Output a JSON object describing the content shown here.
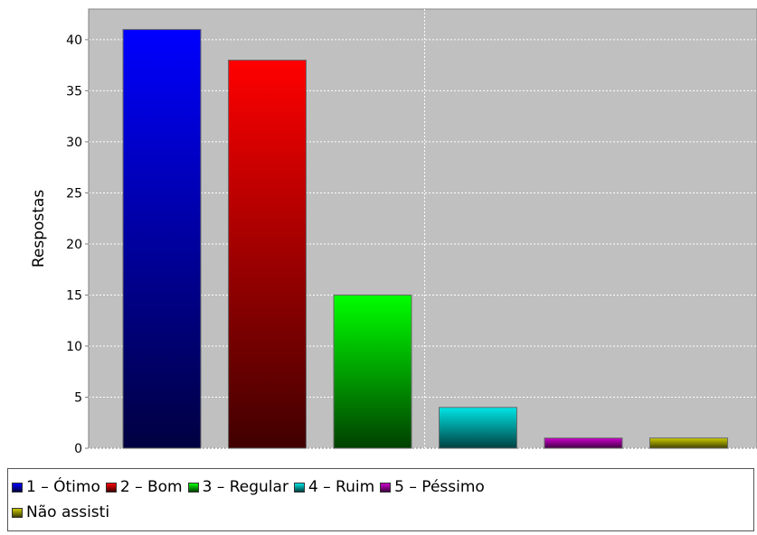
{
  "chart_data": {
    "type": "bar",
    "title": "",
    "xlabel": "",
    "ylabel": "Respostas",
    "ylim": [
      0,
      43
    ],
    "yticks": [
      0,
      5,
      10,
      15,
      20,
      25,
      30,
      35,
      40
    ],
    "grid": true,
    "legend_position": "bottom",
    "categories": [
      "1 – Ótimo",
      "2 – Bom",
      "3 – Regular",
      "4 – Ruim",
      "5 – Péssimo",
      "Não assisti"
    ],
    "values": [
      41,
      38,
      15,
      4,
      1,
      1
    ],
    "colors": [
      "#0000ff",
      "#ff0000",
      "#00ff00",
      "#00e5e5",
      "#cc00cc",
      "#cccc00"
    ],
    "dark_colors": [
      "#000040",
      "#400000",
      "#004000",
      "#004040",
      "#400040",
      "#404000"
    ],
    "plot_background": "#c0c0c0"
  }
}
